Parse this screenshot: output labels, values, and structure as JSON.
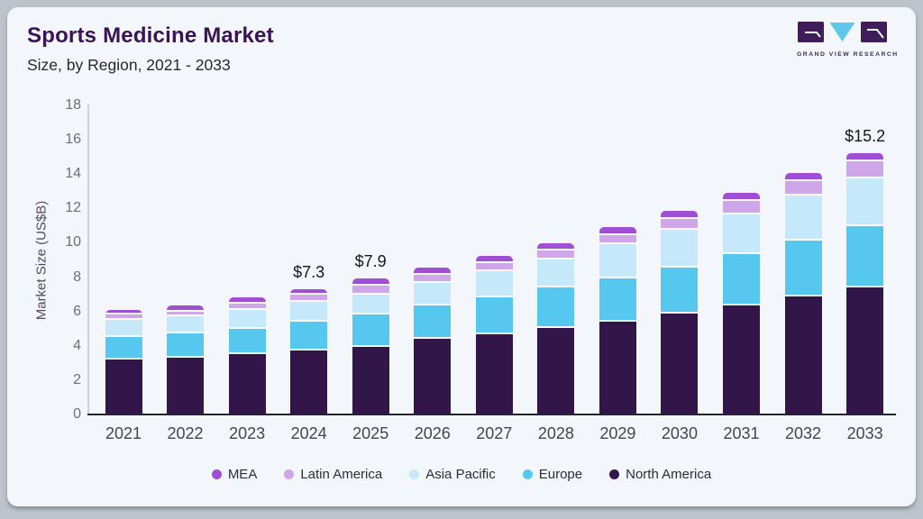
{
  "header": {
    "title": "Sports Medicine Market",
    "subtitle": "Size, by Region, 2021 - 2033"
  },
  "logo": {
    "caption": "GRAND VIEW RESEARCH",
    "purple": "#3f1d5a",
    "cyan": "#5ec7ea"
  },
  "chart_data": {
    "type": "bar",
    "stacked": true,
    "title": "Sports Medicine Market",
    "subtitle": "Size, by Region, 2021 - 2033",
    "ylabel": "Market Size (US$B)",
    "ylim": [
      0,
      18
    ],
    "ytick_step": 2,
    "grid": false,
    "categories": [
      "2021",
      "2022",
      "2023",
      "2024",
      "2025",
      "2026",
      "2027",
      "2028",
      "2029",
      "2030",
      "2031",
      "2032",
      "2033"
    ],
    "series": [
      {
        "name": "North America",
        "color": "#321549",
        "values": [
          3.2,
          3.3,
          3.5,
          3.75,
          3.95,
          4.4,
          4.65,
          5.05,
          5.4,
          5.9,
          6.35,
          6.9,
          7.4
        ]
      },
      {
        "name": "Europe",
        "color": "#56c8f0",
        "values": [
          1.3,
          1.4,
          1.5,
          1.65,
          1.9,
          1.95,
          2.15,
          2.35,
          2.5,
          2.65,
          3.0,
          3.25,
          3.55
        ]
      },
      {
        "name": "Asia Pacific",
        "color": "#c5e9fa",
        "values": [
          1.0,
          1.0,
          1.1,
          1.15,
          1.15,
          1.3,
          1.55,
          1.65,
          2.0,
          2.2,
          2.3,
          2.6,
          2.8
        ]
      },
      {
        "name": "Latin America",
        "color": "#d0a6ea",
        "values": [
          0.3,
          0.3,
          0.35,
          0.45,
          0.5,
          0.5,
          0.45,
          0.5,
          0.55,
          0.65,
          0.8,
          0.85,
          1.0
        ]
      },
      {
        "name": "MEA",
        "color": "#a04fd4",
        "values": [
          0.3,
          0.35,
          0.35,
          0.3,
          0.4,
          0.4,
          0.45,
          0.4,
          0.45,
          0.45,
          0.45,
          0.45,
          0.45
        ]
      }
    ],
    "totals": [
      6.1,
      6.35,
      6.8,
      7.3,
      7.9,
      8.55,
      9.25,
      9.95,
      10.9,
      11.85,
      12.9,
      14.05,
      15.2
    ],
    "annotations": [
      {
        "category": "2024",
        "text": "$7.3"
      },
      {
        "category": "2025",
        "text": "$7.9"
      },
      {
        "category": "2033",
        "text": "$15.2"
      }
    ],
    "legend_position": "bottom",
    "legend_order": [
      "MEA",
      "Latin America",
      "Asia Pacific",
      "Europe",
      "North America"
    ]
  }
}
